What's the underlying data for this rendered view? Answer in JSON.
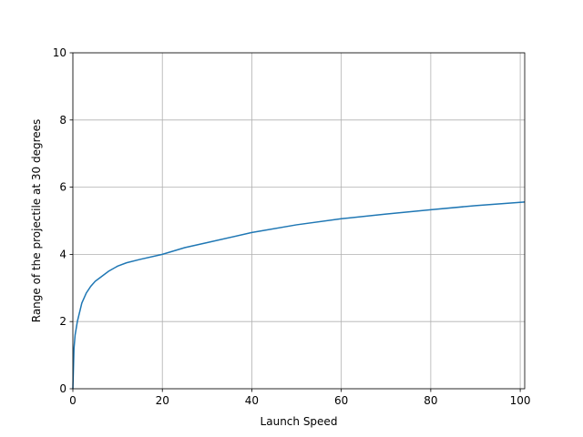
{
  "chart_data": {
    "type": "line",
    "xlabel": "Launch Speed",
    "ylabel": "Range of the projectile at 30 degrees",
    "xlim": [
      0,
      101
    ],
    "ylim": [
      0,
      10
    ],
    "xticks": [
      0,
      20,
      40,
      60,
      80,
      100
    ],
    "yticks": [
      0,
      2,
      4,
      6,
      8,
      10
    ],
    "grid": true,
    "series": [
      {
        "color": "#1f77b4",
        "x": [
          0,
          0.25,
          0.5,
          1,
          2,
          3,
          4,
          5,
          6,
          8,
          10,
          12,
          15,
          20,
          25,
          30,
          40,
          50,
          60,
          70,
          80,
          90,
          101
        ],
        "y": [
          0,
          1.2,
          1.6,
          2.0,
          2.55,
          2.85,
          3.05,
          3.2,
          3.3,
          3.5,
          3.65,
          3.75,
          3.85,
          4.0,
          4.2,
          4.35,
          4.65,
          4.88,
          5.06,
          5.2,
          5.33,
          5.45,
          5.56
        ]
      }
    ]
  }
}
